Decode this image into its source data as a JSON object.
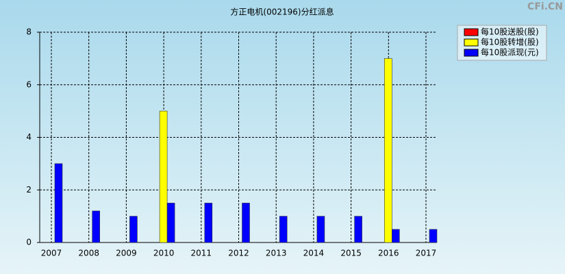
{
  "chart_data": {
    "type": "bar",
    "title": "方正电机(002196)分红派息",
    "watermark": "CFi.CN",
    "categories": [
      "2007",
      "2008",
      "2009",
      "2010",
      "2011",
      "2012",
      "2013",
      "2014",
      "2015",
      "2016",
      "2017"
    ],
    "series": [
      {
        "name": "每10股送股(股)",
        "color": "#ff0000",
        "values": [
          0,
          0,
          0,
          0,
          0,
          0,
          0,
          0,
          0,
          0,
          0
        ]
      },
      {
        "name": "每10股转增(股)",
        "color": "#ffff00",
        "values": [
          0,
          0,
          0,
          5,
          0,
          0,
          0,
          0,
          0,
          7,
          0
        ]
      },
      {
        "name": "每10股派现(元)",
        "color": "#0000ff",
        "values": [
          3,
          1.2,
          1,
          1.5,
          1.5,
          1.5,
          1,
          1,
          1,
          0.5,
          0.5
        ]
      }
    ],
    "ylim": [
      0,
      8
    ],
    "yticks": [
      0,
      2,
      4,
      6,
      8
    ],
    "grid": true,
    "legend": "upper-right"
  }
}
